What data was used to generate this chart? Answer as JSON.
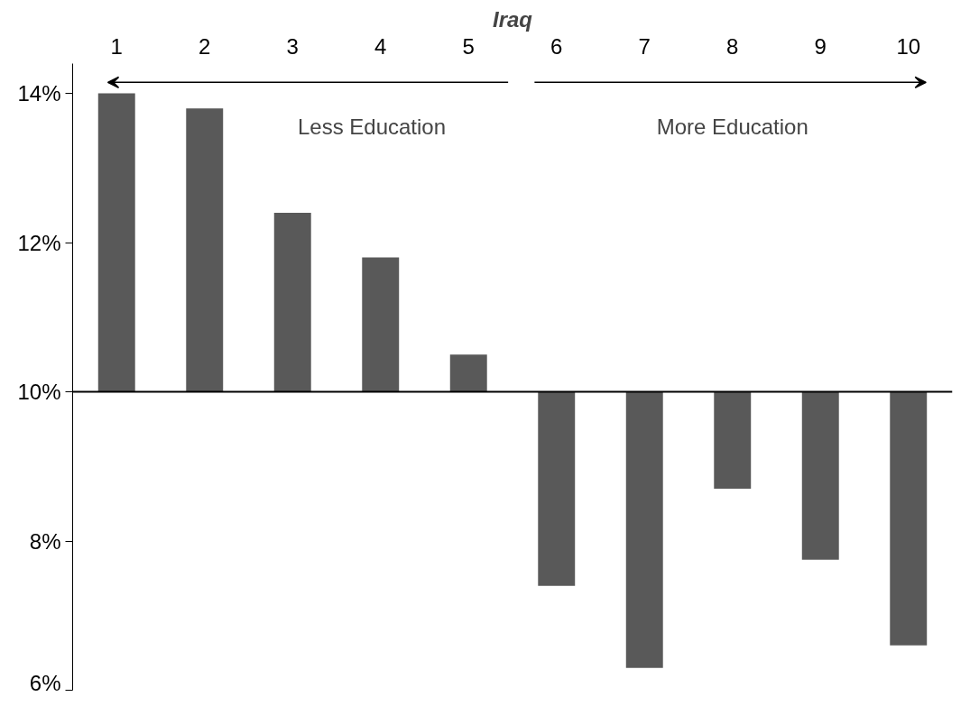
{
  "chart_data": {
    "type": "bar",
    "title": "Iraq",
    "categories": [
      "1",
      "2",
      "3",
      "4",
      "5",
      "6",
      "7",
      "8",
      "9",
      "10"
    ],
    "base": [
      10,
      10,
      10,
      10,
      10,
      10,
      10,
      10,
      10,
      10
    ],
    "values": [
      4.0,
      3.8,
      2.4,
      1.8,
      0.5,
      -2.6,
      -3.7,
      -1.3,
      -2.25,
      -3.4
    ],
    "color": "#595959",
    "ylim": [
      6,
      14.4
    ],
    "yticks": [
      {
        "value": 6,
        "label": "6%"
      },
      {
        "value": 8,
        "label": "8%"
      },
      {
        "value": 10,
        "label": "10%"
      },
      {
        "value": 12,
        "label": "12%"
      },
      {
        "value": 14,
        "label": "14%"
      }
    ],
    "ref_lines": [
      {
        "axis": "y",
        "value": 10,
        "color": "#000000"
      }
    ],
    "annotations": [
      "Less Education",
      "More Education"
    ],
    "grid": false
  }
}
